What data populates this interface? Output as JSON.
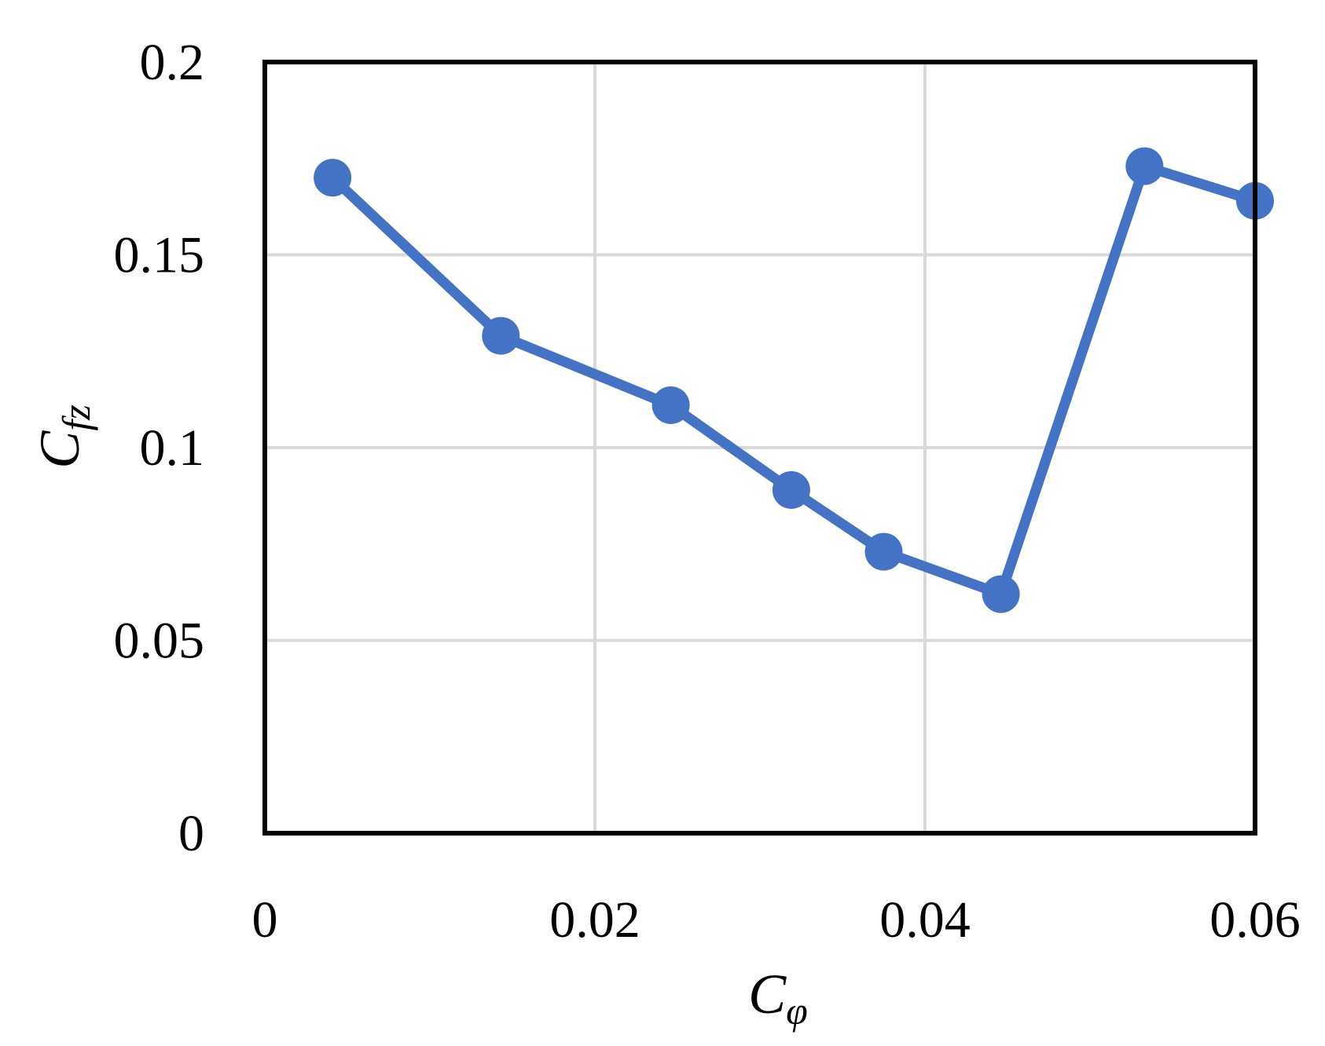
{
  "chart_data": {
    "type": "line",
    "title": "",
    "xlabel": {
      "symbol": "C",
      "subscript": "φ"
    },
    "ylabel": {
      "symbol": "C",
      "subscript": "fz"
    },
    "xlim": [
      0,
      0.06
    ],
    "ylim": [
      0,
      0.2
    ],
    "x_ticks": [
      "0",
      "0.02",
      "0.04",
      "0.06"
    ],
    "y_ticks": [
      "0",
      "0.05",
      "0.1",
      "0.15",
      "0.2"
    ],
    "grid": true,
    "legend": "none",
    "series": [
      {
        "color": "#4472c4",
        "marker": "circle",
        "x": [
          0.0041,
          0.0143,
          0.0246,
          0.0319,
          0.0375,
          0.0446,
          0.0533,
          0.06
        ],
        "y": [
          0.17,
          0.129,
          0.111,
          0.089,
          0.073,
          0.062,
          0.173,
          0.164
        ]
      }
    ]
  }
}
